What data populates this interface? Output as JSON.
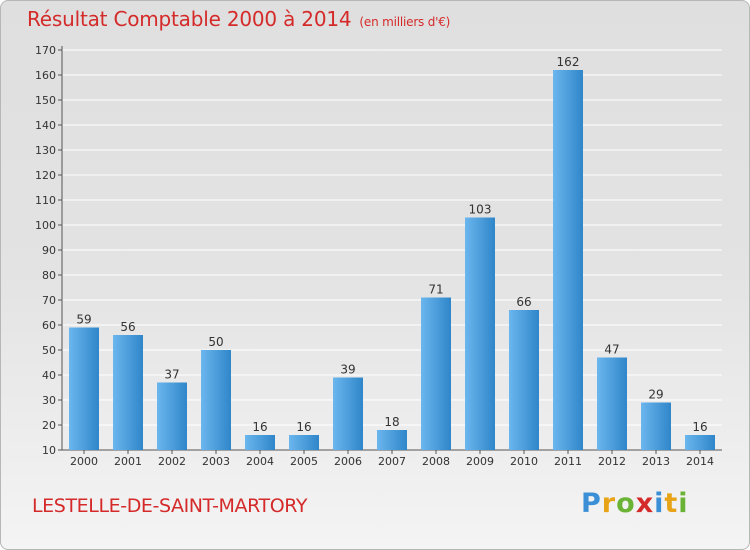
{
  "title": "Résultat Comptable 2000 à 2014",
  "unit": "(en milliers d'€)",
  "commune": "LESTELLE-DE-SAINT-MARTORY",
  "logo": {
    "text": "Proxiti",
    "letters": [
      {
        "ch": "P",
        "color": "#3a8fd6"
      },
      {
        "ch": "r",
        "color": "#e8a417"
      },
      {
        "ch": "o",
        "color": "#6ab334"
      },
      {
        "ch": "x",
        "color": "#d52a2a"
      },
      {
        "ch": "i",
        "color": "#3a8fd6"
      },
      {
        "ch": "t",
        "color": "#e8a417"
      },
      {
        "ch": "i",
        "color": "#6ab334"
      }
    ]
  },
  "colors": {
    "bar_light": "#6bb6ee",
    "bar_dark": "#2f86c9",
    "title": "#d52a2a",
    "grid": "#ffffff"
  },
  "chart_data": {
    "type": "bar",
    "categories": [
      "2000",
      "2001",
      "2002",
      "2003",
      "2004",
      "2005",
      "2006",
      "2007",
      "2008",
      "2009",
      "2010",
      "2011",
      "2012",
      "2013",
      "2014"
    ],
    "values": [
      59,
      56,
      37,
      50,
      16,
      16,
      39,
      18,
      71,
      103,
      66,
      162,
      47,
      29,
      16
    ],
    "ylim": [
      10,
      170
    ],
    "yticks": [
      10,
      20,
      30,
      40,
      50,
      60,
      70,
      80,
      90,
      100,
      110,
      120,
      130,
      140,
      150,
      160,
      170
    ],
    "grid": true,
    "xlabel": "",
    "ylabel": ""
  }
}
